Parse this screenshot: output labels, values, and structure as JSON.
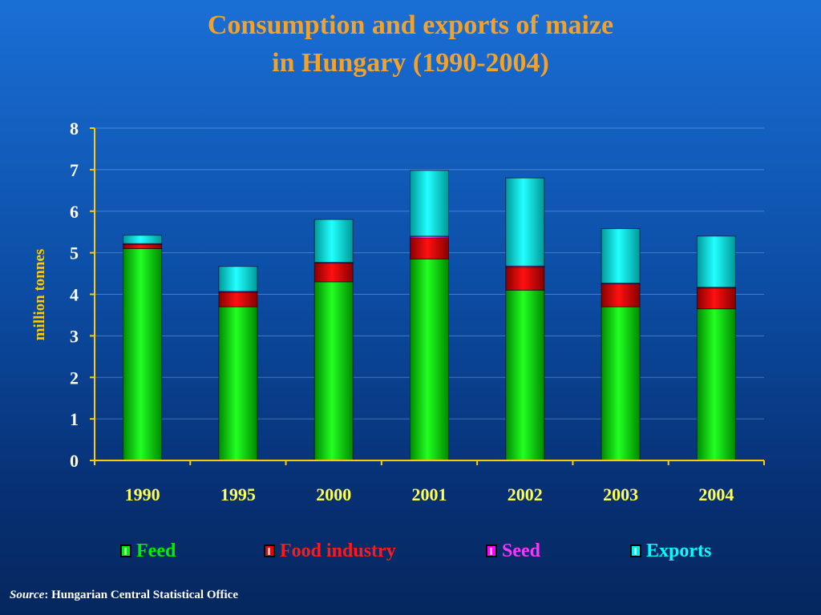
{
  "title": {
    "line1": "Consumption and exports of maize",
    "line2": "in Hungary (1990-2004)"
  },
  "source": {
    "label": "Source",
    "text": ": Hungarian Central Statistical Office"
  },
  "colors": {
    "title": "#f2a22a",
    "Feed": "#00ee00",
    "Food industry": "#ee0000",
    "Seed": "#ff00ff",
    "Exports": "#00eeee",
    "axis": "#ffcc00",
    "ylabel": "#ffcc00"
  },
  "legend": [
    {
      "label": "Feed",
      "color": "#00ee00"
    },
    {
      "label": "Food industry",
      "color": "#ff1a1a"
    },
    {
      "label": "Seed",
      "color": "#ff33ff"
    },
    {
      "label": "Exports",
      "color": "#00ffff"
    }
  ],
  "chart_data": {
    "type": "bar",
    "stacked": true,
    "title": "Consumption and exports of maize in Hungary (1990-2004)",
    "xlabel": "",
    "ylabel": "million tonnes",
    "ylim": [
      0,
      8
    ],
    "yticks": [
      0,
      1,
      2,
      3,
      4,
      5,
      6,
      7,
      8
    ],
    "grid": true,
    "legend_position": "bottom",
    "categories": [
      "1990",
      "1995",
      "2000",
      "2001",
      "2002",
      "2003",
      "2004"
    ],
    "series": [
      {
        "name": "Feed",
        "values": [
          5.1,
          3.7,
          4.3,
          4.85,
          4.1,
          3.7,
          3.65
        ]
      },
      {
        "name": "Food industry",
        "values": [
          0.1,
          0.35,
          0.45,
          0.5,
          0.55,
          0.55,
          0.5
        ]
      },
      {
        "name": "Seed",
        "values": [
          0.02,
          0.02,
          0.02,
          0.05,
          0.03,
          0.02,
          0.02
        ]
      },
      {
        "name": "Exports",
        "values": [
          0.2,
          0.6,
          1.03,
          1.58,
          2.12,
          1.31,
          1.23
        ]
      }
    ]
  }
}
